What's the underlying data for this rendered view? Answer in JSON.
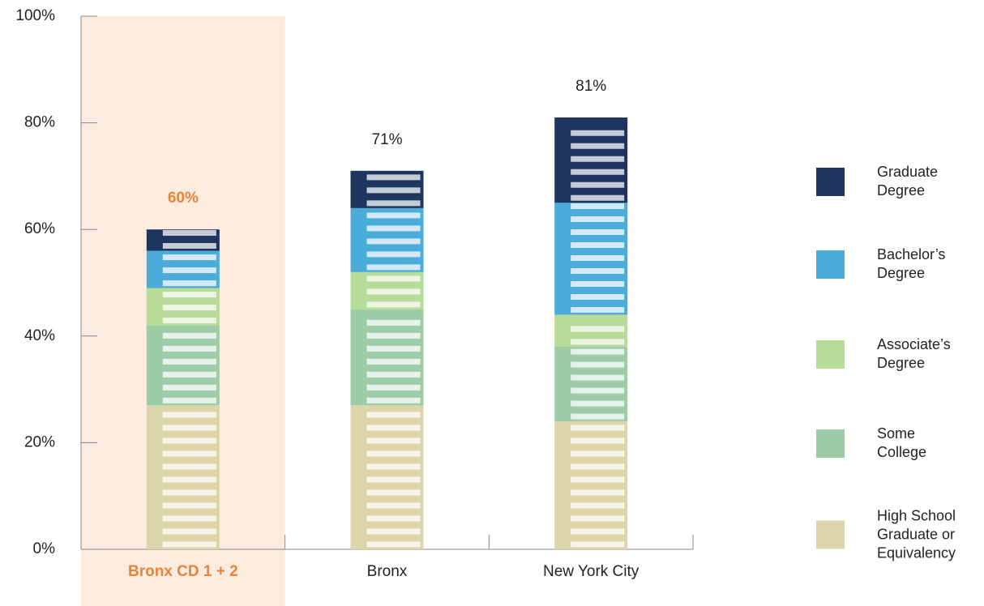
{
  "chart_data": {
    "type": "stacked_bar",
    "categories": [
      "Bronx CD 1 + 2",
      "Bronx",
      "New York City"
    ],
    "highlight": 0,
    "highlight_color": "#fcebdf",
    "highlight_label_color": "#e8833a",
    "series": [
      {
        "name": "High School Graduate or Equivalency",
        "color": "#ddd5aa",
        "values": [
          27,
          27,
          24
        ]
      },
      {
        "name": "Some College",
        "color": "#9dcca8",
        "values": [
          15,
          18,
          14
        ]
      },
      {
        "name": "Associate’s Degree",
        "color": "#b7dc98",
        "values": [
          7,
          7,
          6
        ]
      },
      {
        "name": "Bachelor’s Degree",
        "color": "#4bacd9",
        "values": [
          7,
          12,
          21
        ]
      },
      {
        "name": "Graduate Degree",
        "color": "#1e3560",
        "values": [
          4,
          7,
          16
        ]
      }
    ],
    "totals": [
      60,
      71,
      81
    ],
    "total_labels": [
      "60%",
      "71%",
      "81%"
    ],
    "ylim": [
      0,
      100
    ],
    "yticks": [
      {
        "value": 0,
        "label": "0%"
      },
      {
        "value": 20,
        "label": "20%"
      },
      {
        "value": 40,
        "label": "40%"
      },
      {
        "value": 60,
        "label": "60%"
      },
      {
        "value": 80,
        "label": "80%"
      },
      {
        "value": 100,
        "label": "100%"
      }
    ]
  }
}
